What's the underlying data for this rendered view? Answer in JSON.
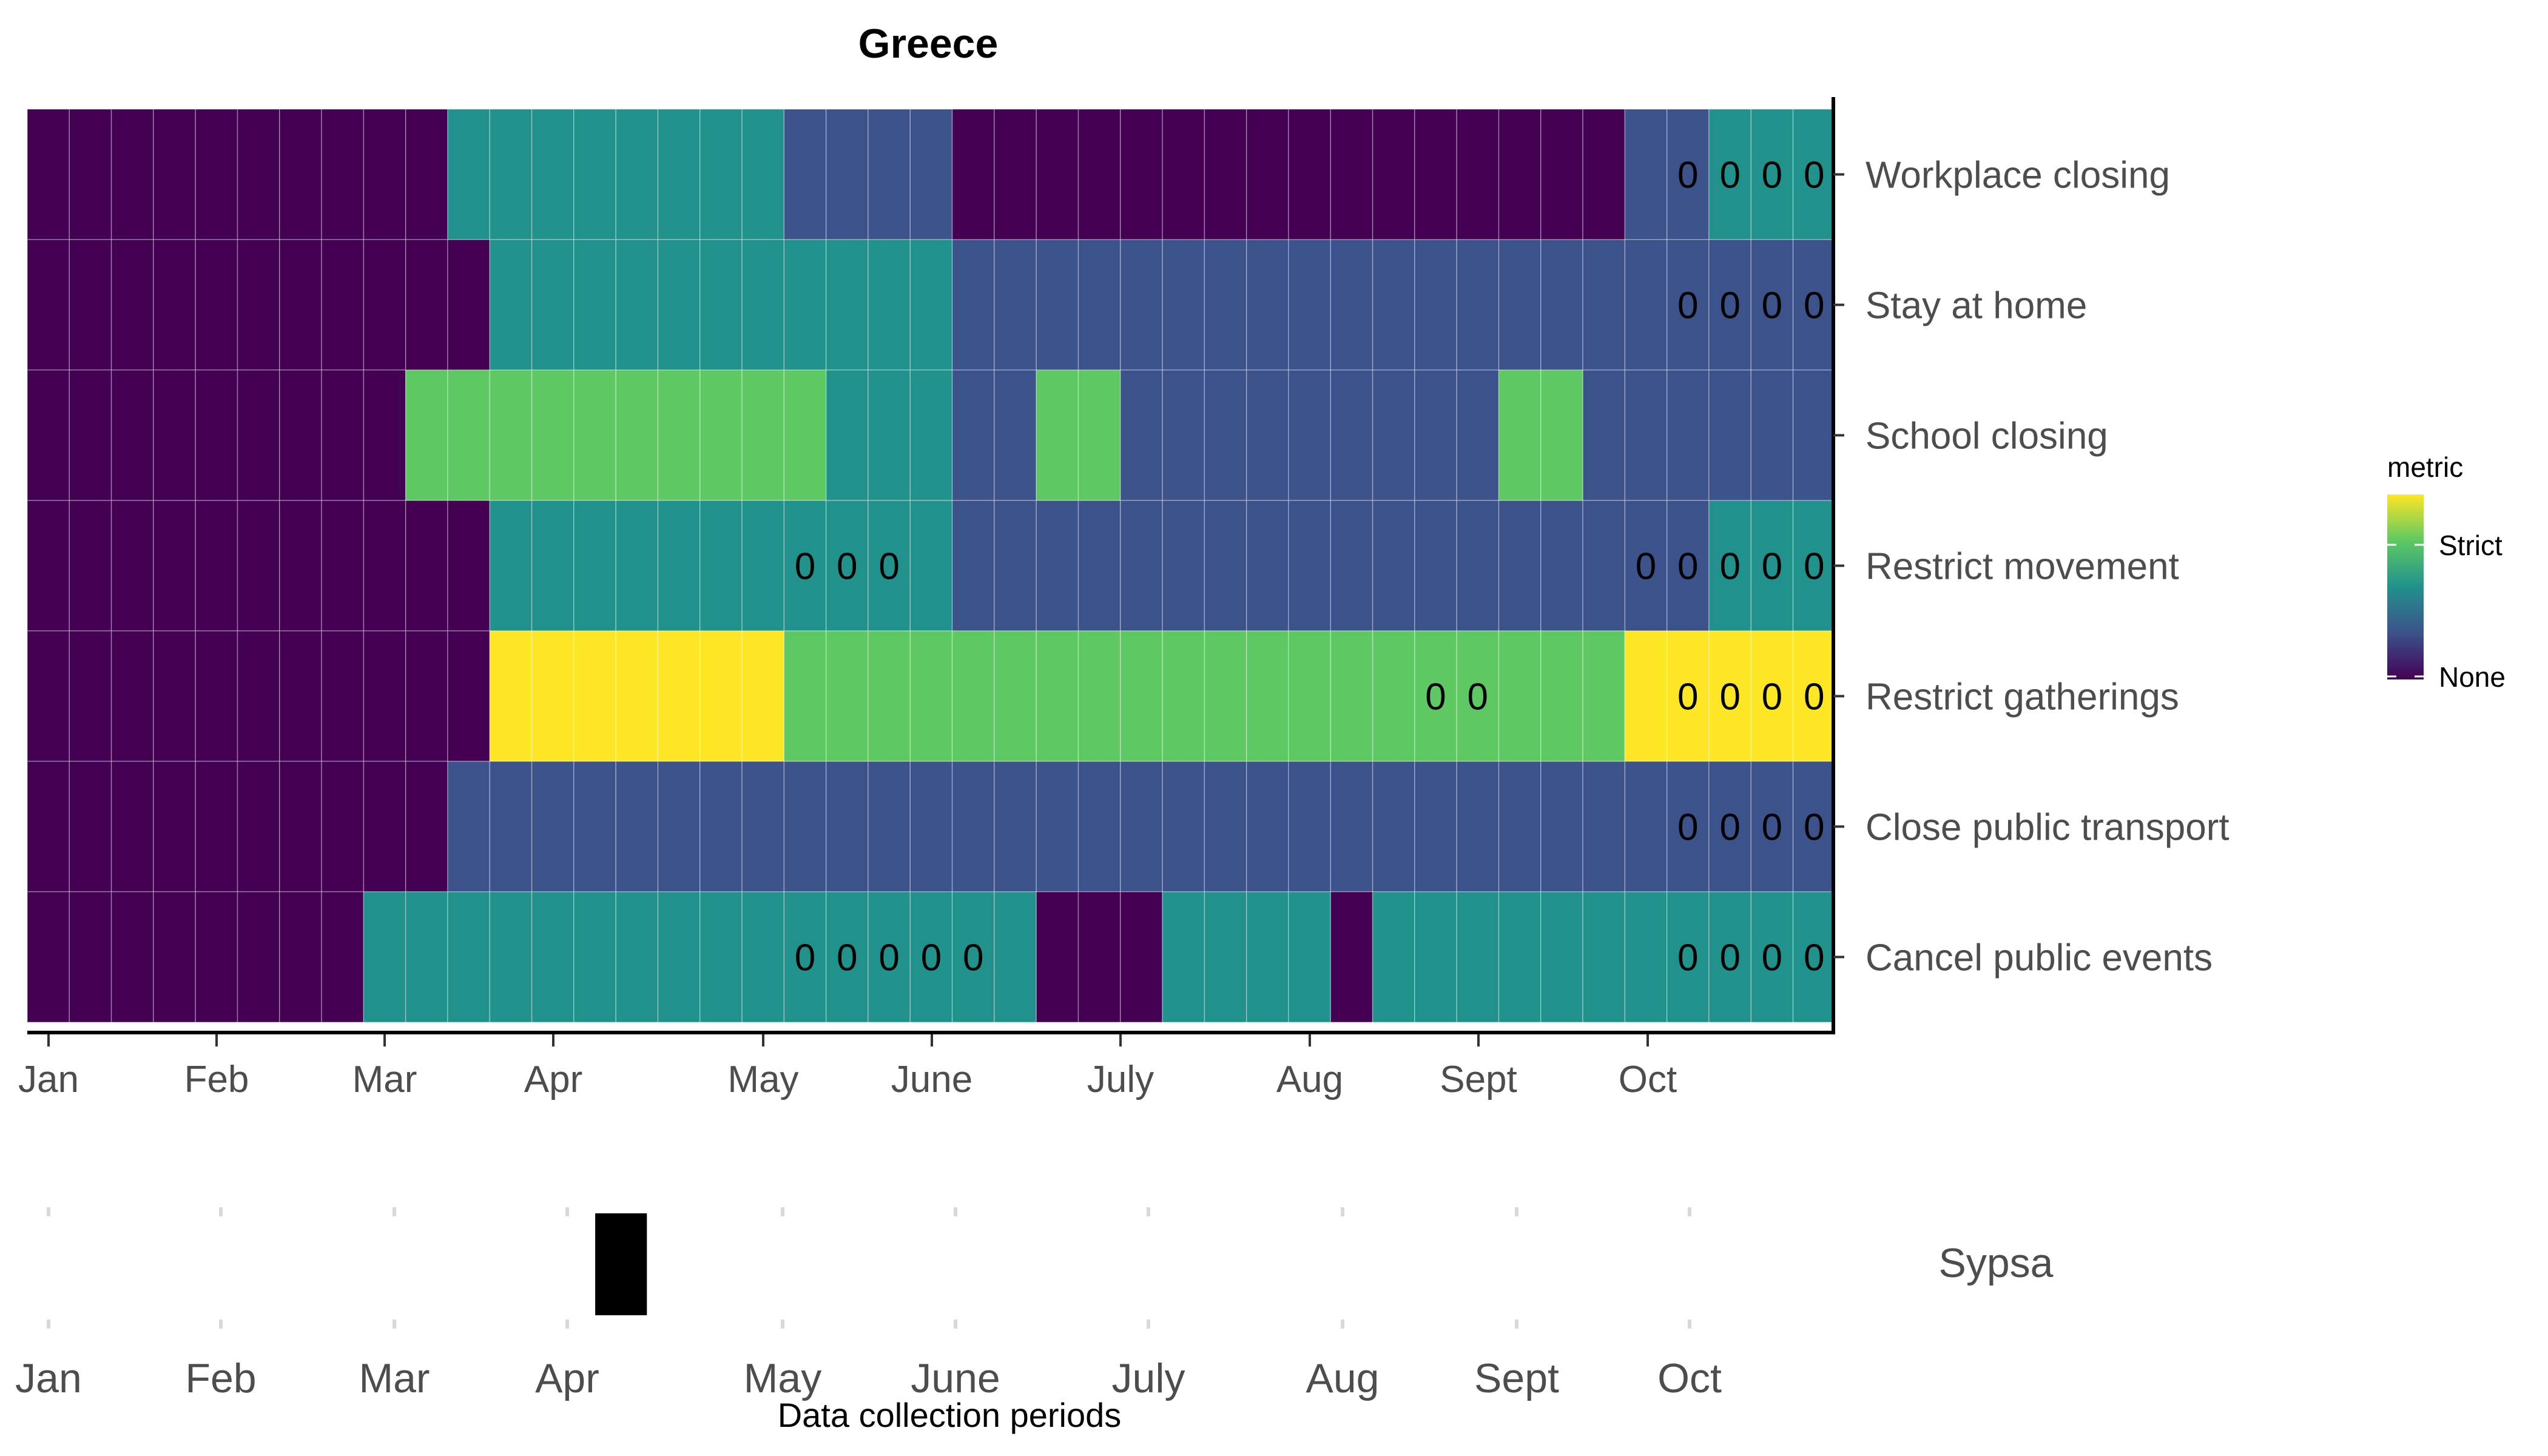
{
  "chart_data": [
    {
      "type": "heatmap",
      "title": "Greece",
      "x_axis": {
        "tick_labels": [
          "Jan",
          "Feb",
          "Mar",
          "Apr",
          "May",
          "June",
          "July",
          "Aug",
          "Sept",
          "Oct"
        ]
      },
      "legend": {
        "title": "metric",
        "high_label": "Strict",
        "low_label": "None",
        "placement": "right"
      },
      "levels": {
        "0": "#440154",
        "1": "#3b528b",
        "2": "#21918c",
        "3": "#5ec962",
        "4": "#fde725"
      },
      "weeks": 43,
      "rows": [
        {
          "label": "Workplace closing",
          "segments": [
            [
              10,
              0
            ],
            [
              8,
              2
            ],
            [
              4,
              1
            ],
            [
              16,
              0
            ],
            [
              2,
              1
            ],
            [
              3,
              2
            ]
          ],
          "zeros_weeks": [
            39,
            40,
            41,
            42
          ]
        },
        {
          "label": "Stay at home",
          "segments": [
            [
              11,
              0
            ],
            [
              11,
              2
            ],
            [
              21,
              1
            ]
          ],
          "zeros_weeks": [
            39,
            40,
            41,
            42
          ]
        },
        {
          "label": "School closing",
          "segments": [
            [
              9,
              0
            ],
            [
              10,
              3
            ],
            [
              3,
              2
            ],
            [
              2,
              1
            ],
            [
              2,
              3
            ],
            [
              9,
              1
            ],
            [
              2,
              3
            ],
            [
              6,
              1
            ]
          ],
          "zeros_weeks": []
        },
        {
          "label": "Restrict movement",
          "segments": [
            [
              11,
              0
            ],
            [
              11,
              2
            ],
            [
              16,
              1
            ],
            [
              2,
              1
            ],
            [
              3,
              2
            ]
          ],
          "zeros_weeks": [
            18,
            19,
            20,
            38,
            39,
            40,
            41,
            42
          ]
        },
        {
          "label": "Restrict gatherings",
          "segments": [
            [
              11,
              0
            ],
            [
              7,
              4
            ],
            [
              20,
              3
            ],
            [
              5,
              4
            ]
          ],
          "zeros_weeks": [
            33,
            34,
            39,
            40,
            41,
            42
          ]
        },
        {
          "label": "Close public transport",
          "segments": [
            [
              10,
              0
            ],
            [
              33,
              1
            ]
          ],
          "zeros_weeks": [
            39,
            40,
            41,
            42
          ]
        },
        {
          "label": "Cancel public events",
          "segments": [
            [
              8,
              0
            ],
            [
              16,
              2
            ],
            [
              3,
              0
            ],
            [
              4,
              2
            ],
            [
              1,
              0
            ],
            [
              11,
              2
            ]
          ],
          "zeros_weeks": [
            18,
            19,
            20,
            21,
            22,
            39,
            40,
            41,
            42
          ]
        }
      ]
    },
    {
      "type": "bar",
      "xlabel": "Data collection periods",
      "x_axis": {
        "tick_labels": [
          "Jan",
          "Feb",
          "Mar",
          "Apr",
          "May",
          "June",
          "July",
          "Aug",
          "Sept",
          "Oct"
        ]
      },
      "series": [
        {
          "name": "Sypsa",
          "period_month_fraction": [
            3.13,
            3.37
          ]
        }
      ]
    }
  ]
}
